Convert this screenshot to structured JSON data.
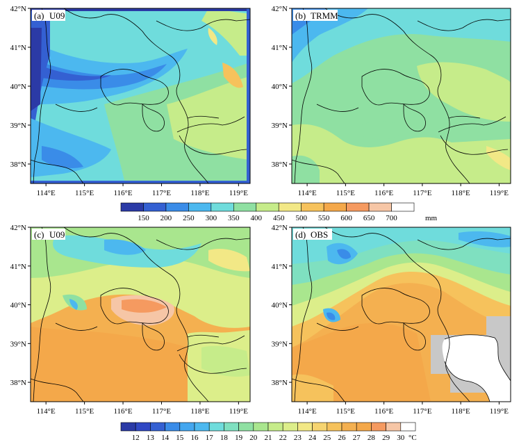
{
  "chart_data": [
    {
      "type": "heatmap",
      "panel": "(a)",
      "label": "U09",
      "variable_group": "precip",
      "xlim": [
        113.6,
        119.3
      ],
      "ylim": [
        37.5,
        42.0
      ],
      "x_ticks": [
        "114°E",
        "115°E",
        "116°E",
        "117°E",
        "118°E",
        "119°E"
      ],
      "y_ticks": [
        "38°N",
        "39°N",
        "40°N",
        "41°N",
        "42°N"
      ],
      "field_summary": "fine-scale total precipitation, ~100-200 mm in west/northwest band, 250-450 mm over most of domain, local maxima near 550-650 mm in northeast"
    },
    {
      "type": "heatmap",
      "panel": "(b)",
      "label": "TRMM",
      "variable_group": "precip",
      "xlim": [
        113.6,
        119.3
      ],
      "ylim": [
        37.5,
        42.0
      ],
      "x_ticks": [
        "114°E",
        "115°E",
        "116°E",
        "117°E",
        "118°E",
        "119°E"
      ],
      "y_ticks": [
        "38°N",
        "39°N",
        "40°N",
        "41°N",
        "42°N"
      ],
      "field_summary": "coarse total precipitation, ~200-300 mm in northwest corner, 350-450 mm over most of domain"
    },
    {
      "type": "heatmap",
      "panel": "(c)",
      "label": "U09",
      "variable_group": "temp",
      "xlim": [
        113.6,
        119.3
      ],
      "ylim": [
        37.5,
        42.0
      ],
      "x_ticks": [
        "114°E",
        "115°E",
        "116°E",
        "117°E",
        "118°E",
        "119°E"
      ],
      "y_ticks": [
        "38°N",
        "39°N",
        "40°N",
        "41°N",
        "42°N"
      ],
      "field_summary": "fine-scale temperature, ~16-20 °C over northern mountains, 24-27 °C over southeastern plain"
    },
    {
      "type": "heatmap",
      "panel": "(d)",
      "label": "OBS",
      "variable_group": "temp",
      "xlim": [
        113.6,
        119.3
      ],
      "ylim": [
        37.5,
        42.0
      ],
      "x_ticks": [
        "114°E",
        "115°E",
        "116°E",
        "117°E",
        "118°E",
        "119°E"
      ],
      "y_ticks": [
        "38°N",
        "39°N",
        "40°N",
        "41°N",
        "42°N"
      ],
      "field_summary": "smooth observed temperature, ~14-18 °C in north with cool spots near 115°E, 25-26 °C in south, gray area = no data over Bohai Bay region"
    }
  ],
  "colorbars": {
    "precip": {
      "unit": "mm",
      "labels": [
        "150",
        "200",
        "250",
        "300",
        "350",
        "400",
        "450",
        "500",
        "550",
        "600",
        "650",
        "700"
      ],
      "levels": [
        150,
        200,
        250,
        300,
        350,
        400,
        450,
        500,
        550,
        600,
        650,
        700
      ],
      "colors": [
        "#2b3aa6",
        "#3460d2",
        "#3a8ce8",
        "#4cb8ef",
        "#6fdcdc",
        "#8fe0a2",
        "#c6ec8a",
        "#f2e886",
        "#f6c25c",
        "#f4a84a",
        "#f59a60",
        "#f6c6a6",
        "#ffffff"
      ]
    },
    "temp": {
      "unit": "°C",
      "labels": [
        "12",
        "13",
        "14",
        "15",
        "16",
        "17",
        "18",
        "19",
        "20",
        "21",
        "22",
        "23",
        "24",
        "25",
        "26",
        "27",
        "28",
        "29",
        "30"
      ],
      "levels": [
        12,
        13,
        14,
        15,
        16,
        17,
        18,
        19,
        20,
        21,
        22,
        23,
        24,
        25,
        26,
        27,
        28,
        29,
        30
      ],
      "colors": [
        "#2b3aa6",
        "#3048c4",
        "#3460d2",
        "#3a8ce8",
        "#43a6ef",
        "#4cb8ef",
        "#6fdcdc",
        "#7fe0c0",
        "#8fe0a2",
        "#a9e68e",
        "#c6ec8a",
        "#dcee8a",
        "#f2e886",
        "#f6d470",
        "#f6c25c",
        "#f4b050",
        "#f4a84a",
        "#f59a60",
        "#f6c6a6",
        "#ffffff"
      ]
    }
  },
  "style": {
    "nodata_color": "#c8c8c8",
    "border_color": "#000000"
  }
}
